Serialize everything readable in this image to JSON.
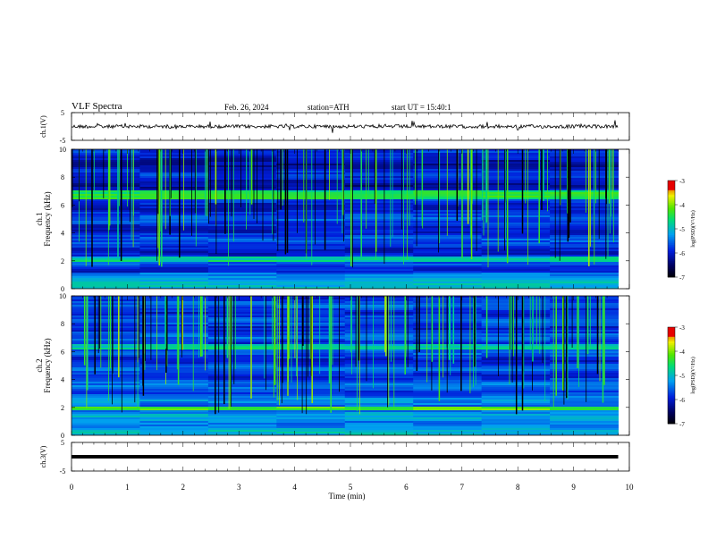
{
  "header": {
    "title": "VLF Spectra",
    "date": "Feb. 26, 2024",
    "station": "station=ATH",
    "start_ut": "start UT = 15:40:1"
  },
  "chart_data": [
    {
      "type": "line",
      "ylabel": "ch.1(V)",
      "ylim": [
        -5,
        5
      ],
      "yticks": [
        "5",
        "-5"
      ],
      "x": [
        0,
        9.8
      ],
      "description_note": "",
      "series": [
        {
          "values_level": 0
        }
      ],
      "xlim": [
        0,
        10
      ]
    },
    {
      "type": "heatmap",
      "ylabel": "ch.1 Frequency (kHz)",
      "ylim": [
        0,
        10
      ],
      "yticks": [
        "0",
        "2",
        "4",
        "6",
        "8",
        "10"
      ],
      "xlim": [
        0,
        10
      ],
      "data_extent_x": [
        0,
        9.8
      ],
      "colorbar": {
        "label": "log(PSD)(V²/Hz)",
        "range": [
          -7,
          -3
        ],
        "ticks": [
          "-3",
          "-4",
          "-5",
          "-6",
          "-7"
        ]
      }
    },
    {
      "type": "heatmap",
      "ylabel": "ch.2 Frequency (kHz)",
      "ylim": [
        0,
        10
      ],
      "yticks": [
        "0",
        "2",
        "4",
        "6",
        "8",
        "10"
      ],
      "xlim": [
        0,
        10
      ],
      "data_extent_x": [
        0,
        9.8
      ],
      "colorbar": {
        "label": "log(PSD)(V²/Hz)",
        "range": [
          -7,
          -3
        ],
        "ticks": [
          "-3",
          "-4",
          "-5",
          "-6",
          "-7"
        ]
      }
    },
    {
      "type": "line",
      "ylabel": "ch.3(V)",
      "ylim": [
        -5,
        5
      ],
      "yticks": [
        "5",
        "-5"
      ],
      "x": [
        0,
        9.8
      ],
      "series": [
        {
          "values_level": 0
        }
      ],
      "xlim": [
        0,
        10
      ],
      "xlabel": "Time (min)",
      "xticks": [
        "0",
        "1",
        "2",
        "3",
        "4",
        "5",
        "6",
        "7",
        "8",
        "9",
        "10"
      ]
    }
  ]
}
